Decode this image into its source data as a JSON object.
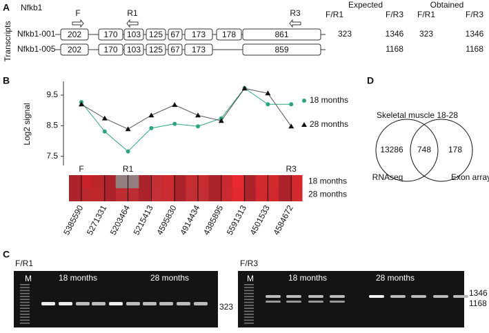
{
  "panel_labels": [
    "A",
    "B",
    "C",
    "D"
  ],
  "panel_a": {
    "gene": "Nfkb1",
    "axis_label": "Transcripts",
    "primers": [
      "F",
      "R1",
      "R3"
    ],
    "expected": "Expected",
    "obtained": "Obtained",
    "column_headers": [
      "F/R1",
      "F/R3",
      "F/R1",
      "F/R3"
    ],
    "transcripts": [
      {
        "name": "Nfkb1-001",
        "exons": [
          "202",
          "170",
          "103",
          "125",
          "67",
          "173",
          "178",
          "861"
        ],
        "sizes": [
          "323",
          "1346",
          "323",
          "1346"
        ]
      },
      {
        "name": "Nfkb1-005",
        "exons": [
          "202",
          "170",
          "103",
          "125",
          "67",
          "173",
          "859"
        ],
        "sizes": [
          null,
          "1168",
          null,
          "1168"
        ]
      }
    ]
  },
  "chart_data": {
    "type": "line",
    "y_label": "Log2 signal",
    "categories": [
      "5385590",
      "5271331",
      "5203464",
      "5215413",
      "4595830",
      "4914434",
      "4385895",
      "5591313",
      "4501533",
      "4584672"
    ],
    "ylim": [
      7.2,
      9.95
    ],
    "yticks": [
      7.5,
      8.5,
      9.5
    ],
    "series": [
      {
        "name": "18 months",
        "color": "#2aa57f",
        "marker": "circle",
        "values": [
          9.27,
          8.31,
          7.66,
          8.42,
          8.56,
          8.48,
          8.74,
          9.73,
          9.2,
          9.2
        ]
      },
      {
        "name": "28 months",
        "color": "#111111",
        "marker": "triangle",
        "values": [
          9.2,
          8.74,
          8.39,
          8.84,
          9.18,
          8.84,
          8.66,
          9.72,
          9.56,
          8.48
        ]
      }
    ],
    "heatmap_primers": [
      "F",
      "R1",
      "R3"
    ],
    "heatmap_rows": [
      "18 months",
      "28 months"
    ]
  },
  "panel_c": {
    "gels": [
      {
        "primer": "F/R1",
        "marker": "M",
        "groups": [
          "18 months",
          "28 months"
        ],
        "sizes": [
          "323"
        ]
      },
      {
        "primer": "F/R3",
        "marker": "M",
        "groups": [
          "18 months",
          "28 months"
        ],
        "sizes": [
          "1346",
          "1168"
        ]
      }
    ]
  },
  "panel_d": {
    "title": "Skeletal muscle 18-28",
    "counts": [
      "13286",
      "748",
      "178"
    ],
    "sets": [
      "RNAseq",
      "Exon array"
    ]
  }
}
